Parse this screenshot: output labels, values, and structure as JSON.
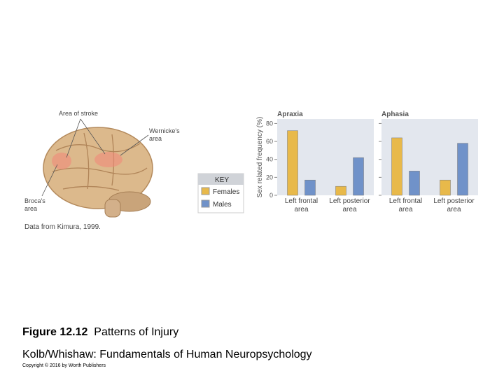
{
  "illustration": {
    "labels": [
      "Area of stroke",
      "Wernicke's area",
      "Broca's area"
    ],
    "source": "Data from Kimura, 1999."
  },
  "key": {
    "title": "KEY"
  },
  "slide": {
    "figure_number": "Figure 12.12",
    "figure_title": "Patterns of Injury",
    "subtitle": "Kolb/Whishaw: Fundamentals of Human Neuropsychology",
    "copyright": "Copyright © 2016 by Worth Publishers"
  },
  "chart_data": [
    {
      "type": "bar",
      "title": "Apraxia",
      "y_label": "Sex related frequency (%)",
      "categories": [
        "Left frontal area",
        "Left posterior area"
      ],
      "series": [
        {
          "name": "Females",
          "color": "#e8b94a",
          "values": [
            72,
            10
          ]
        },
        {
          "name": "Males",
          "color": "#7092c9",
          "values": [
            17,
            42
          ]
        }
      ],
      "ylim": [
        0,
        85
      ],
      "yticks": [
        0,
        20,
        40,
        60,
        80
      ]
    },
    {
      "type": "bar",
      "title": "Aphasia",
      "categories": [
        "Left frontal area",
        "Left posterior area"
      ],
      "series": [
        {
          "name": "Females",
          "color": "#e8b94a",
          "values": [
            64,
            17
          ]
        },
        {
          "name": "Males",
          "color": "#7092c9",
          "values": [
            27,
            58
          ]
        }
      ],
      "ylim": [
        0,
        85
      ],
      "yticks": [
        0,
        20,
        40,
        60,
        80
      ]
    }
  ]
}
